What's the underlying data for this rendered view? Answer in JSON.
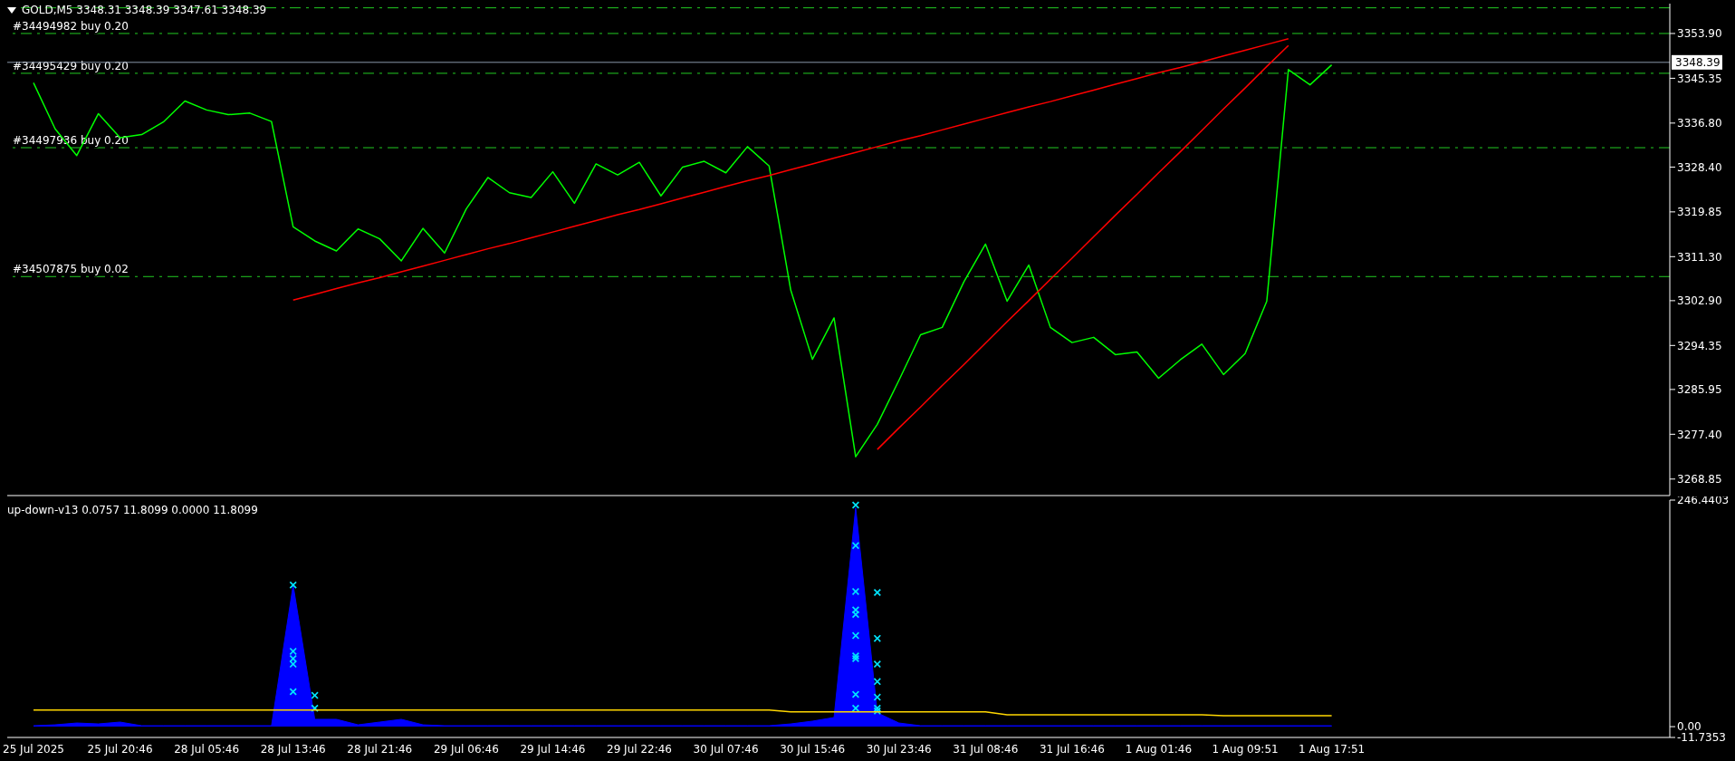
{
  "chart_data": [
    {
      "type": "line",
      "title": "GOLD,M5  3348.31 3348.39 3347.61 3348.39",
      "tick_labels": "y",
      "ylim": [
        3265.7,
        3359.6
      ],
      "categories": [
        null,
        null,
        null,
        null,
        null,
        null,
        null,
        null,
        null,
        null,
        null,
        null,
        null,
        null,
        null,
        null,
        null,
        null,
        null,
        null,
        null,
        null,
        null,
        null,
        null,
        null,
        null,
        null,
        null,
        null,
        null,
        null,
        null,
        null,
        null,
        null,
        null,
        null,
        null,
        null,
        null,
        null,
        null,
        null,
        null,
        null,
        null,
        null,
        null,
        null,
        null,
        null,
        null,
        null,
        null,
        null,
        null,
        null,
        null,
        null,
        null,
        null,
        null,
        null,
        null,
        null,
        null,
        null,
        null,
        null,
        null,
        null,
        null,
        null,
        null,
        null
      ],
      "yticks": [
        {
          "value": 3353.9,
          "label": "3353.90"
        },
        {
          "value": 3345.35,
          "label": "3345.35"
        },
        {
          "value": 3336.8,
          "label": "3336.80"
        },
        {
          "value": 3328.4,
          "label": "3328.40"
        },
        {
          "value": 3319.85,
          "label": "3319.85"
        },
        {
          "value": 3311.3,
          "label": "3311.30"
        },
        {
          "value": 3302.9,
          "label": "3302.90"
        },
        {
          "value": 3294.35,
          "label": "3294.35"
        },
        {
          "value": 3285.95,
          "label": "3285.95"
        },
        {
          "value": 3277.4,
          "label": "3277.40"
        },
        {
          "value": 3268.85,
          "label": "3268.85"
        }
      ],
      "ref_lines": [
        {
          "axis": "y",
          "value": 3358.8,
          "color": "#22cc22",
          "line_style": "dashed"
        },
        {
          "axis": "y",
          "value": 3353.9,
          "label": "#34494982 buy 0.20",
          "color": "#22cc22",
          "line_style": "dashed"
        },
        {
          "axis": "y",
          "value": 3346.3,
          "label": "#34495429 buy 0.20",
          "color": "#22cc22",
          "line_style": "dashed"
        },
        {
          "axis": "y",
          "value": 3332.1,
          "label": "#34497936 buy 0.20",
          "color": "#22cc22",
          "line_style": "dashed"
        },
        {
          "axis": "y",
          "value": 3307.5,
          "label": "#34507875 buy 0.02",
          "color": "#22cc22",
          "line_style": "dashed"
        },
        {
          "axis": "y",
          "value": 3348.39,
          "label": "3348.39",
          "color": "#8a96a8",
          "line_style": "solid"
        }
      ],
      "series": [
        {
          "color": "#00ff00",
          "values": [
            3344.5,
            3335.7,
            3330.6,
            3338.6,
            3334.0,
            3334.6,
            3337.0,
            3341.0,
            3339.3,
            3338.4,
            3338.7,
            3337.1,
            3317.0,
            3314.3,
            3312.4,
            3316.6,
            3314.7,
            3310.5,
            3316.7,
            3312.0,
            3320.4,
            3326.4,
            3323.5,
            3322.6,
            3327.5,
            3321.5,
            3329.0,
            3326.9,
            3329.3,
            3322.9,
            3328.4,
            3329.5,
            3327.3,
            3332.3,
            3328.6,
            3304.9,
            3291.7,
            3299.6,
            3273.1,
            3279.3,
            3287.7,
            3296.4,
            3297.8,
            3306.5,
            3313.7,
            3302.8,
            3309.7,
            3297.8,
            3294.9,
            3295.9,
            3292.6,
            3293.1,
            3288.1,
            3291.6,
            3294.6,
            3288.8,
            3292.8,
            3302.8,
            3347.0,
            3344.1,
            3347.9,
            null,
            null,
            null,
            null,
            null,
            null,
            null,
            null,
            null,
            null,
            null,
            null,
            null,
            null,
            null
          ]
        },
        {
          "color": "#ff0000",
          "values": [
            null,
            null,
            null,
            null,
            null,
            null,
            null,
            null,
            null,
            null,
            null,
            null,
            3303.0,
            3304.1,
            3305.2,
            3306.3,
            3307.3,
            3308.4,
            3309.5,
            3310.6,
            3311.7,
            3312.8,
            3313.8,
            3314.9,
            3316.0,
            3317.1,
            3318.2,
            3319.3,
            3320.3,
            3321.4,
            3322.5,
            3323.6,
            3324.7,
            3325.8,
            3326.8,
            3327.9,
            3329.0,
            3330.1,
            3331.2,
            3332.3,
            3333.4,
            3334.4,
            3335.5,
            3336.6,
            3337.7,
            3338.8,
            3339.9,
            3340.9,
            3342.0,
            3343.1,
            3344.2,
            3345.3,
            3346.4,
            3347.4,
            3348.5,
            3349.6,
            3350.7,
            3351.8,
            3352.9,
            null,
            null,
            null,
            null,
            null,
            null,
            null,
            null,
            null,
            null,
            null,
            null,
            null,
            null,
            null,
            null,
            null
          ]
        },
        {
          "color": "#ff0000",
          "values": [
            null,
            null,
            null,
            null,
            null,
            null,
            null,
            null,
            null,
            null,
            null,
            null,
            null,
            null,
            null,
            null,
            null,
            null,
            null,
            null,
            null,
            null,
            null,
            null,
            null,
            null,
            null,
            null,
            null,
            null,
            null,
            null,
            null,
            null,
            null,
            null,
            null,
            null,
            null,
            3274.5,
            3278.6,
            3282.6,
            3286.7,
            3290.7,
            3294.8,
            3298.9,
            3302.9,
            3307.0,
            3311.0,
            3315.1,
            3319.2,
            3323.2,
            3327.3,
            3331.3,
            3335.4,
            3339.5,
            3343.5,
            3347.6,
            3351.6,
            null,
            null,
            null,
            null,
            null,
            null,
            null,
            null,
            null,
            null,
            null,
            null,
            null,
            null,
            null,
            null,
            null
          ]
        }
      ]
    },
    {
      "type": "area",
      "title": "up-down-v13 0.0757 11.8099 0.0000 11.8099",
      "ylim": [
        -11.7353,
        246.4403
      ],
      "categories": [
        "25 Jul 2025",
        null,
        null,
        null,
        "25 Jul 20:46",
        null,
        null,
        null,
        "28 Jul 05:46",
        null,
        null,
        null,
        "28 Jul 13:46",
        null,
        null,
        null,
        "28 Jul 21:46",
        null,
        null,
        null,
        "29 Jul 06:46",
        null,
        null,
        null,
        "29 Jul 14:46",
        null,
        null,
        null,
        "29 Jul 22:46",
        null,
        null,
        null,
        "30 Jul 07:46",
        null,
        null,
        null,
        "30 Jul 15:46",
        null,
        null,
        null,
        "30 Jul 23:46",
        null,
        null,
        null,
        "31 Jul 08:46",
        null,
        null,
        null,
        "31 Jul 16:46",
        null,
        null,
        null,
        "1 Aug 01:46",
        null,
        null,
        null,
        "1 Aug 09:51",
        null,
        null,
        null,
        "1 Aug 17:51",
        null,
        null,
        null,
        null,
        null,
        null,
        null,
        null,
        null,
        null,
        null,
        null,
        null,
        null,
        null
      ],
      "yticks": [
        246.4403,
        {
          "value": 0,
          "label": "0.00"
        },
        -11.7353
      ],
      "series": [
        {
          "color": "#0000ff",
          "values": [
            1,
            2,
            4,
            3,
            5,
            1,
            1,
            1,
            1,
            1,
            1,
            1,
            154,
            8,
            8,
            2,
            5,
            8,
            2,
            1,
            1,
            1,
            1,
            1,
            1,
            1,
            1,
            1,
            1,
            1,
            1,
            1,
            1,
            1,
            1,
            3,
            6,
            10,
            238,
            15,
            4,
            1,
            1,
            1,
            1,
            1,
            1,
            1,
            1,
            1,
            1,
            1,
            1,
            1,
            1,
            1,
            1,
            1,
            1,
            1,
            1,
            null,
            null,
            null,
            null,
            null,
            null,
            null,
            null,
            null,
            null,
            null,
            null,
            null,
            null,
            null
          ]
        },
        {
          "type": "scatter",
          "color": "#00e5ff",
          "marker": "cross",
          "values": [
            null,
            null,
            null,
            null,
            null,
            null,
            null,
            null,
            null,
            null,
            null,
            null,
            154,
            34,
            null,
            null,
            null,
            null,
            null,
            null,
            null,
            null,
            null,
            null,
            null,
            null,
            null,
            null,
            null,
            null,
            null,
            null,
            null,
            null,
            null,
            null,
            null,
            null,
            241,
            96,
            null,
            null,
            null,
            null,
            null,
            null,
            null,
            null,
            null,
            null,
            null,
            null,
            null,
            null,
            null,
            null,
            null,
            null,
            null,
            null,
            null,
            null,
            null,
            null,
            null,
            null,
            null,
            null,
            null,
            null,
            null,
            null,
            null,
            null,
            null,
            null
          ]
        },
        {
          "type": "scatter",
          "color": "#00e5ff",
          "marker": "cross",
          "values": [
            null,
            null,
            null,
            null,
            null,
            null,
            null,
            null,
            null,
            null,
            null,
            null,
            82,
            20,
            null,
            null,
            null,
            null,
            null,
            null,
            null,
            null,
            null,
            null,
            null,
            null,
            null,
            null,
            null,
            null,
            null,
            null,
            null,
            null,
            null,
            null,
            null,
            null,
            197,
            68,
            null,
            null,
            null,
            null,
            null,
            null,
            null,
            null,
            null,
            null,
            null,
            null,
            null,
            null,
            null,
            null,
            null,
            null,
            null,
            null,
            null,
            null,
            null,
            null,
            null,
            null,
            null,
            null,
            null,
            null,
            null,
            null,
            null,
            null,
            null,
            null
          ]
        },
        {
          "type": "scatter",
          "color": "#00e5ff",
          "marker": "cross",
          "values": [
            null,
            null,
            null,
            null,
            null,
            null,
            null,
            null,
            null,
            null,
            null,
            null,
            74,
            null,
            null,
            null,
            null,
            null,
            null,
            null,
            null,
            null,
            null,
            null,
            null,
            null,
            null,
            null,
            null,
            null,
            null,
            null,
            null,
            null,
            null,
            null,
            null,
            null,
            147,
            49,
            null,
            null,
            null,
            null,
            null,
            null,
            null,
            null,
            null,
            null,
            null,
            null,
            null,
            null,
            null,
            null,
            null,
            null,
            null,
            null,
            null,
            null,
            null,
            null,
            null,
            null,
            null,
            null,
            null,
            null,
            null,
            null,
            null,
            null,
            null,
            null
          ]
        },
        {
          "type": "scatter",
          "color": "#00e5ff",
          "marker": "cross",
          "values": [
            null,
            null,
            null,
            null,
            null,
            null,
            null,
            null,
            null,
            null,
            null,
            null,
            68,
            null,
            null,
            null,
            null,
            null,
            null,
            null,
            null,
            null,
            null,
            null,
            null,
            null,
            null,
            null,
            null,
            null,
            null,
            null,
            null,
            null,
            null,
            null,
            null,
            null,
            null,
            32,
            null,
            null,
            null,
            null,
            null,
            null,
            null,
            null,
            null,
            null,
            null,
            null,
            null,
            null,
            null,
            null,
            null,
            null,
            null,
            null,
            null,
            null,
            null,
            null,
            null,
            null,
            null,
            null,
            null,
            null,
            null,
            null,
            null,
            null,
            null,
            null
          ]
        },
        {
          "type": "scatter",
          "color": "#00e5ff",
          "marker": "cross",
          "values": [
            null,
            null,
            null,
            null,
            null,
            null,
            null,
            null,
            null,
            null,
            null,
            null,
            38,
            null,
            null,
            null,
            null,
            null,
            null,
            null,
            null,
            null,
            null,
            null,
            null,
            null,
            null,
            null,
            null,
            null,
            null,
            null,
            null,
            null,
            null,
            null,
            null,
            null,
            127,
            20,
            null,
            null,
            null,
            null,
            null,
            null,
            null,
            null,
            null,
            null,
            null,
            null,
            null,
            null,
            null,
            null,
            null,
            null,
            null,
            null,
            null,
            null,
            null,
            null,
            null,
            null,
            null,
            null,
            null,
            null,
            null,
            null,
            null,
            null,
            null,
            null
          ]
        },
        {
          "type": "scatter",
          "color": "#00e5ff",
          "marker": "cross",
          "values": [
            null,
            null,
            null,
            null,
            null,
            null,
            null,
            null,
            null,
            null,
            null,
            null,
            null,
            null,
            null,
            null,
            null,
            null,
            null,
            null,
            null,
            null,
            null,
            null,
            null,
            null,
            null,
            null,
            null,
            null,
            null,
            null,
            null,
            null,
            null,
            null,
            null,
            null,
            122,
            17,
            null,
            null,
            null,
            null,
            null,
            null,
            null,
            null,
            null,
            null,
            null,
            null,
            null,
            null,
            null,
            null,
            null,
            null,
            null,
            null,
            null,
            null,
            null,
            null,
            null,
            null,
            null,
            null,
            null,
            null,
            null,
            null,
            null,
            null,
            null,
            null
          ]
        },
        {
          "type": "scatter",
          "color": "#00e5ff",
          "marker": "cross",
          "values": [
            null,
            null,
            null,
            null,
            null,
            null,
            null,
            null,
            null,
            null,
            null,
            null,
            null,
            null,
            null,
            null,
            null,
            null,
            null,
            null,
            null,
            null,
            null,
            null,
            null,
            null,
            null,
            null,
            null,
            null,
            null,
            null,
            null,
            null,
            null,
            null,
            null,
            null,
            99,
            146,
            null,
            null,
            null,
            null,
            null,
            null,
            null,
            null,
            null,
            null,
            null,
            null,
            null,
            null,
            null,
            null,
            null,
            null,
            null,
            null,
            null,
            null,
            null,
            null,
            null,
            null,
            null,
            null,
            null,
            null,
            null,
            null,
            null,
            null,
            null,
            null
          ]
        },
        {
          "type": "scatter",
          "color": "#00e5ff",
          "marker": "cross",
          "values": [
            null,
            null,
            null,
            null,
            null,
            null,
            null,
            null,
            null,
            null,
            null,
            null,
            null,
            null,
            null,
            null,
            null,
            null,
            null,
            null,
            null,
            null,
            null,
            null,
            null,
            null,
            null,
            null,
            null,
            null,
            null,
            null,
            null,
            null,
            null,
            null,
            null,
            null,
            77,
            null,
            null,
            null,
            null,
            null,
            null,
            null,
            null,
            null,
            null,
            null,
            null,
            null,
            null,
            null,
            null,
            null,
            null,
            null,
            null,
            null,
            null,
            null,
            null,
            null,
            null,
            null,
            null,
            null,
            null,
            null,
            null,
            null,
            null,
            null,
            null,
            null
          ]
        },
        {
          "type": "scatter",
          "color": "#00e5ff",
          "marker": "cross",
          "values": [
            null,
            null,
            null,
            null,
            null,
            null,
            null,
            null,
            null,
            null,
            null,
            null,
            null,
            null,
            null,
            null,
            null,
            null,
            null,
            null,
            null,
            null,
            null,
            null,
            null,
            null,
            null,
            null,
            null,
            null,
            null,
            null,
            null,
            null,
            null,
            null,
            null,
            null,
            74,
            null,
            null,
            null,
            null,
            null,
            null,
            null,
            null,
            null,
            null,
            null,
            null,
            null,
            null,
            null,
            null,
            null,
            null,
            null,
            null,
            null,
            null,
            null,
            null,
            null,
            null,
            null,
            null,
            null,
            null,
            null,
            null,
            null,
            null,
            null,
            null,
            null
          ]
        },
        {
          "type": "scatter",
          "color": "#00e5ff",
          "marker": "cross",
          "values": [
            null,
            null,
            null,
            null,
            null,
            null,
            null,
            null,
            null,
            null,
            null,
            null,
            null,
            null,
            null,
            null,
            null,
            null,
            null,
            null,
            null,
            null,
            null,
            null,
            null,
            null,
            null,
            null,
            null,
            null,
            null,
            null,
            null,
            null,
            null,
            null,
            null,
            null,
            35,
            null,
            null,
            null,
            null,
            null,
            null,
            null,
            null,
            null,
            null,
            null,
            null,
            null,
            null,
            null,
            null,
            null,
            null,
            null,
            null,
            null,
            null,
            null,
            null,
            null,
            null,
            null,
            null,
            null,
            null,
            null,
            null,
            null,
            null,
            null,
            null,
            null
          ]
        },
        {
          "type": "scatter",
          "color": "#00e5ff",
          "marker": "cross",
          "values": [
            null,
            null,
            null,
            null,
            null,
            null,
            null,
            null,
            null,
            null,
            null,
            null,
            null,
            null,
            null,
            null,
            null,
            null,
            null,
            null,
            null,
            null,
            null,
            null,
            null,
            null,
            null,
            null,
            null,
            null,
            null,
            null,
            null,
            null,
            null,
            null,
            null,
            null,
            20,
            null,
            null,
            null,
            null,
            null,
            null,
            null,
            null,
            null,
            null,
            null,
            null,
            null,
            null,
            null,
            null,
            null,
            null,
            null,
            null,
            null,
            null,
            null,
            null,
            null,
            null,
            null,
            null,
            null,
            null,
            null,
            null,
            null,
            null,
            null,
            null,
            null
          ]
        },
        {
          "type": "line",
          "color": "#ffd700",
          "values": [
            18,
            18,
            18,
            18,
            18,
            18,
            18,
            18,
            18,
            18,
            18,
            18,
            18,
            18,
            18,
            18,
            18,
            18,
            18,
            18,
            18,
            18,
            18,
            18,
            18,
            18,
            18,
            18,
            18,
            18,
            18,
            18,
            18,
            18,
            18,
            16,
            16,
            16,
            16,
            16,
            16,
            16,
            16,
            16,
            16,
            13,
            13,
            13,
            13,
            13,
            13,
            13,
            13,
            13,
            13,
            12,
            12,
            12,
            12,
            12,
            12,
            null,
            null,
            null,
            null,
            null,
            null,
            null,
            null,
            null,
            null,
            null,
            null,
            null,
            null,
            null
          ]
        }
      ]
    }
  ]
}
